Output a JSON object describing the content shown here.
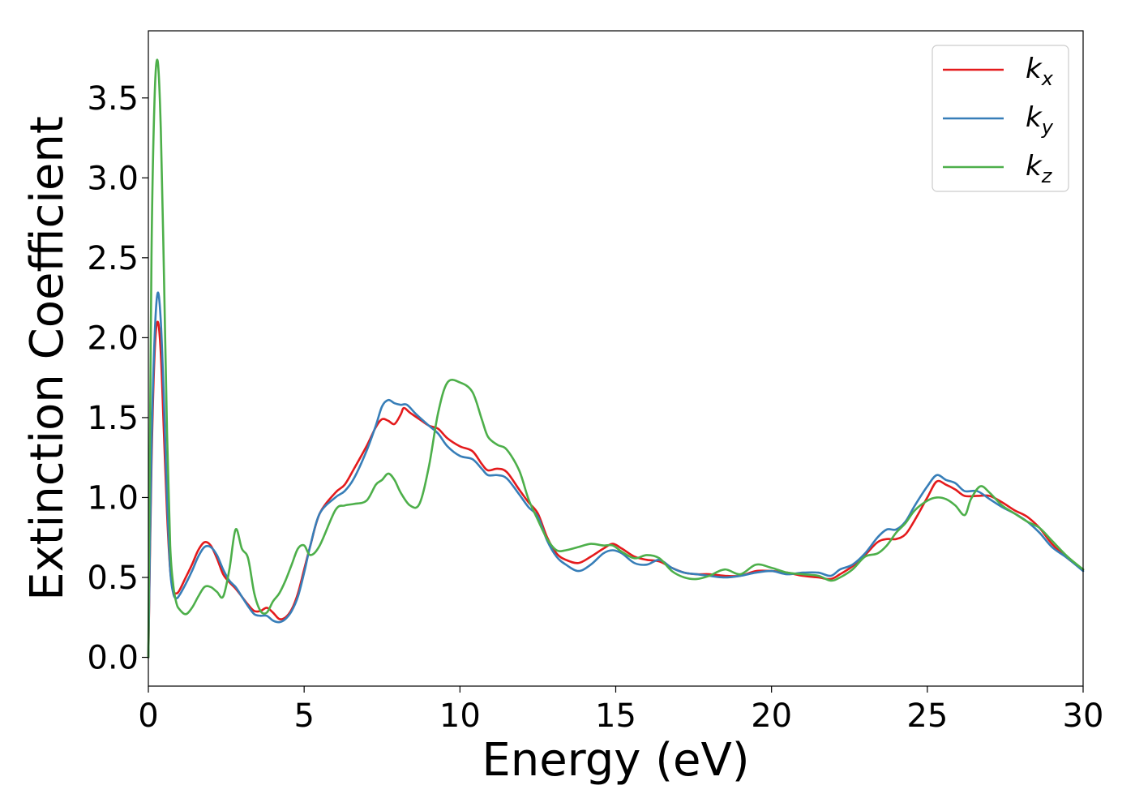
{
  "chart_data": {
    "type": "line",
    "title": "",
    "xlabel": "Energy (eV)",
    "ylabel": "Extinction Coefficient",
    "xlim": [
      0,
      30
    ],
    "ylim": [
      -0.18,
      3.92
    ],
    "xticks": [
      0,
      5,
      10,
      15,
      20,
      25,
      30
    ],
    "xtick_labels": [
      "0",
      "5",
      "10",
      "15",
      "20",
      "25",
      "30"
    ],
    "yticks": [
      0.0,
      0.5,
      1.0,
      1.5,
      2.0,
      2.5,
      3.0,
      3.5
    ],
    "ytick_labels": [
      "0.0",
      "0.5",
      "1.0",
      "1.5",
      "2.0",
      "2.5",
      "3.0",
      "3.5"
    ],
    "grid": false,
    "legend_position": "top-right",
    "series": [
      {
        "name": "k_x",
        "legend_base": "k",
        "legend_sub": "x",
        "color": "#e41a1c",
        "points": [
          [
            0,
            0.0
          ],
          [
            0.1,
            1.2
          ],
          [
            0.2,
            1.9
          ],
          [
            0.3,
            2.1
          ],
          [
            0.4,
            1.9
          ],
          [
            0.5,
            1.4
          ],
          [
            0.6,
            0.9
          ],
          [
            0.7,
            0.55
          ],
          [
            0.8,
            0.42
          ],
          [
            0.9,
            0.4
          ],
          [
            1.0,
            0.42
          ],
          [
            1.2,
            0.5
          ],
          [
            1.4,
            0.58
          ],
          [
            1.6,
            0.67
          ],
          [
            1.8,
            0.72
          ],
          [
            2.0,
            0.7
          ],
          [
            2.2,
            0.62
          ],
          [
            2.4,
            0.52
          ],
          [
            2.6,
            0.47
          ],
          [
            2.8,
            0.43
          ],
          [
            3.0,
            0.38
          ],
          [
            3.2,
            0.33
          ],
          [
            3.4,
            0.29
          ],
          [
            3.6,
            0.29
          ],
          [
            3.8,
            0.31
          ],
          [
            4.0,
            0.28
          ],
          [
            4.2,
            0.24
          ],
          [
            4.4,
            0.25
          ],
          [
            4.6,
            0.3
          ],
          [
            4.8,
            0.4
          ],
          [
            5.0,
            0.55
          ],
          [
            5.2,
            0.7
          ],
          [
            5.5,
            0.9
          ],
          [
            6.0,
            1.03
          ],
          [
            6.3,
            1.08
          ],
          [
            6.6,
            1.18
          ],
          [
            7.0,
            1.32
          ],
          [
            7.3,
            1.44
          ],
          [
            7.5,
            1.49
          ],
          [
            7.7,
            1.48
          ],
          [
            7.9,
            1.46
          ],
          [
            8.1,
            1.52
          ],
          [
            8.2,
            1.56
          ],
          [
            8.4,
            1.53
          ],
          [
            8.7,
            1.49
          ],
          [
            9.0,
            1.45
          ],
          [
            9.3,
            1.43
          ],
          [
            9.6,
            1.37
          ],
          [
            10.0,
            1.32
          ],
          [
            10.4,
            1.29
          ],
          [
            10.7,
            1.21
          ],
          [
            10.9,
            1.17
          ],
          [
            11.2,
            1.18
          ],
          [
            11.5,
            1.16
          ],
          [
            11.9,
            1.05
          ],
          [
            12.2,
            0.97
          ],
          [
            12.5,
            0.9
          ],
          [
            12.8,
            0.75
          ],
          [
            13.1,
            0.65
          ],
          [
            13.4,
            0.61
          ],
          [
            13.8,
            0.59
          ],
          [
            14.2,
            0.63
          ],
          [
            14.6,
            0.68
          ],
          [
            14.9,
            0.71
          ],
          [
            15.2,
            0.68
          ],
          [
            15.6,
            0.63
          ],
          [
            16.0,
            0.61
          ],
          [
            16.4,
            0.6
          ],
          [
            16.8,
            0.56
          ],
          [
            17.2,
            0.53
          ],
          [
            17.6,
            0.52
          ],
          [
            18.0,
            0.52
          ],
          [
            18.5,
            0.51
          ],
          [
            19.0,
            0.51
          ],
          [
            19.5,
            0.54
          ],
          [
            20.0,
            0.54
          ],
          [
            20.5,
            0.53
          ],
          [
            21.0,
            0.51
          ],
          [
            21.5,
            0.5
          ],
          [
            21.9,
            0.49
          ],
          [
            22.2,
            0.52
          ],
          [
            22.6,
            0.57
          ],
          [
            23.0,
            0.64
          ],
          [
            23.4,
            0.72
          ],
          [
            23.7,
            0.74
          ],
          [
            24.0,
            0.74
          ],
          [
            24.3,
            0.77
          ],
          [
            24.6,
            0.86
          ],
          [
            25.0,
            1.0
          ],
          [
            25.3,
            1.1
          ],
          [
            25.6,
            1.08
          ],
          [
            25.9,
            1.05
          ],
          [
            26.2,
            1.01
          ],
          [
            26.6,
            1.01
          ],
          [
            27.0,
            1.01
          ],
          [
            27.4,
            0.97
          ],
          [
            27.8,
            0.92
          ],
          [
            28.2,
            0.88
          ],
          [
            28.6,
            0.81
          ],
          [
            29.0,
            0.71
          ],
          [
            29.5,
            0.62
          ],
          [
            30.0,
            0.55
          ]
        ]
      },
      {
        "name": "k_y",
        "legend_base": "k",
        "legend_sub": "y",
        "color": "#377eb8",
        "points": [
          [
            0,
            0.0
          ],
          [
            0.1,
            1.3
          ],
          [
            0.2,
            2.0
          ],
          [
            0.3,
            2.28
          ],
          [
            0.4,
            2.1
          ],
          [
            0.5,
            1.6
          ],
          [
            0.6,
            1.0
          ],
          [
            0.7,
            0.55
          ],
          [
            0.8,
            0.4
          ],
          [
            0.9,
            0.37
          ],
          [
            1.0,
            0.39
          ],
          [
            1.2,
            0.46
          ],
          [
            1.4,
            0.54
          ],
          [
            1.6,
            0.63
          ],
          [
            1.8,
            0.69
          ],
          [
            2.0,
            0.69
          ],
          [
            2.2,
            0.64
          ],
          [
            2.4,
            0.55
          ],
          [
            2.6,
            0.48
          ],
          [
            2.8,
            0.44
          ],
          [
            3.0,
            0.38
          ],
          [
            3.2,
            0.32
          ],
          [
            3.4,
            0.27
          ],
          [
            3.6,
            0.26
          ],
          [
            3.8,
            0.26
          ],
          [
            4.0,
            0.23
          ],
          [
            4.2,
            0.22
          ],
          [
            4.4,
            0.24
          ],
          [
            4.6,
            0.29
          ],
          [
            4.8,
            0.38
          ],
          [
            5.0,
            0.53
          ],
          [
            5.2,
            0.7
          ],
          [
            5.5,
            0.9
          ],
          [
            6.0,
            1.0
          ],
          [
            6.3,
            1.04
          ],
          [
            6.6,
            1.12
          ],
          [
            7.0,
            1.29
          ],
          [
            7.3,
            1.45
          ],
          [
            7.5,
            1.57
          ],
          [
            7.7,
            1.61
          ],
          [
            7.9,
            1.59
          ],
          [
            8.1,
            1.58
          ],
          [
            8.3,
            1.58
          ],
          [
            8.6,
            1.52
          ],
          [
            9.0,
            1.45
          ],
          [
            9.3,
            1.4
          ],
          [
            9.6,
            1.32
          ],
          [
            10.0,
            1.26
          ],
          [
            10.4,
            1.24
          ],
          [
            10.7,
            1.18
          ],
          [
            10.9,
            1.14
          ],
          [
            11.2,
            1.14
          ],
          [
            11.5,
            1.12
          ],
          [
            11.9,
            1.02
          ],
          [
            12.2,
            0.94
          ],
          [
            12.5,
            0.88
          ],
          [
            12.8,
            0.73
          ],
          [
            13.1,
            0.63
          ],
          [
            13.4,
            0.58
          ],
          [
            13.8,
            0.54
          ],
          [
            14.2,
            0.58
          ],
          [
            14.6,
            0.65
          ],
          [
            14.9,
            0.67
          ],
          [
            15.2,
            0.65
          ],
          [
            15.6,
            0.59
          ],
          [
            16.0,
            0.58
          ],
          [
            16.4,
            0.61
          ],
          [
            16.8,
            0.56
          ],
          [
            17.2,
            0.53
          ],
          [
            17.6,
            0.52
          ],
          [
            18.0,
            0.51
          ],
          [
            18.5,
            0.5
          ],
          [
            19.0,
            0.51
          ],
          [
            19.5,
            0.53
          ],
          [
            20.0,
            0.54
          ],
          [
            20.5,
            0.52
          ],
          [
            21.0,
            0.53
          ],
          [
            21.5,
            0.53
          ],
          [
            21.9,
            0.51
          ],
          [
            22.2,
            0.55
          ],
          [
            22.6,
            0.58
          ],
          [
            23.0,
            0.65
          ],
          [
            23.4,
            0.75
          ],
          [
            23.7,
            0.8
          ],
          [
            24.0,
            0.8
          ],
          [
            24.3,
            0.85
          ],
          [
            24.6,
            0.95
          ],
          [
            25.0,
            1.07
          ],
          [
            25.3,
            1.14
          ],
          [
            25.6,
            1.11
          ],
          [
            25.9,
            1.09
          ],
          [
            26.2,
            1.04
          ],
          [
            26.6,
            1.04
          ],
          [
            27.0,
            0.99
          ],
          [
            27.4,
            0.94
          ],
          [
            27.8,
            0.9
          ],
          [
            28.2,
            0.85
          ],
          [
            28.6,
            0.78
          ],
          [
            29.0,
            0.69
          ],
          [
            29.5,
            0.62
          ],
          [
            30.0,
            0.54
          ]
        ]
      },
      {
        "name": "k_z",
        "legend_base": "k",
        "legend_sub": "z",
        "color": "#4daf4a",
        "points": [
          [
            0,
            0.0
          ],
          [
            0.1,
            2.5
          ],
          [
            0.2,
            3.5
          ],
          [
            0.3,
            3.73
          ],
          [
            0.4,
            3.3
          ],
          [
            0.5,
            2.4
          ],
          [
            0.6,
            1.4
          ],
          [
            0.7,
            0.7
          ],
          [
            0.8,
            0.45
          ],
          [
            0.9,
            0.34
          ],
          [
            1.0,
            0.3
          ],
          [
            1.2,
            0.27
          ],
          [
            1.4,
            0.31
          ],
          [
            1.6,
            0.38
          ],
          [
            1.8,
            0.44
          ],
          [
            2.0,
            0.44
          ],
          [
            2.2,
            0.41
          ],
          [
            2.4,
            0.38
          ],
          [
            2.6,
            0.55
          ],
          [
            2.8,
            0.8
          ],
          [
            3.0,
            0.68
          ],
          [
            3.2,
            0.62
          ],
          [
            3.4,
            0.4
          ],
          [
            3.6,
            0.29
          ],
          [
            3.8,
            0.28
          ],
          [
            4.0,
            0.35
          ],
          [
            4.2,
            0.4
          ],
          [
            4.4,
            0.48
          ],
          [
            4.6,
            0.58
          ],
          [
            4.8,
            0.68
          ],
          [
            5.0,
            0.7
          ],
          [
            5.2,
            0.64
          ],
          [
            5.5,
            0.7
          ],
          [
            6.0,
            0.92
          ],
          [
            6.3,
            0.95
          ],
          [
            6.6,
            0.96
          ],
          [
            7.0,
            0.98
          ],
          [
            7.3,
            1.08
          ],
          [
            7.5,
            1.11
          ],
          [
            7.7,
            1.15
          ],
          [
            7.9,
            1.11
          ],
          [
            8.1,
            1.03
          ],
          [
            8.4,
            0.95
          ],
          [
            8.7,
            0.96
          ],
          [
            9.0,
            1.19
          ],
          [
            9.3,
            1.53
          ],
          [
            9.6,
            1.72
          ],
          [
            10.0,
            1.72
          ],
          [
            10.4,
            1.66
          ],
          [
            10.7,
            1.49
          ],
          [
            10.9,
            1.38
          ],
          [
            11.2,
            1.33
          ],
          [
            11.5,
            1.3
          ],
          [
            11.9,
            1.17
          ],
          [
            12.2,
            0.99
          ],
          [
            12.5,
            0.86
          ],
          [
            12.8,
            0.74
          ],
          [
            13.1,
            0.67
          ],
          [
            13.4,
            0.67
          ],
          [
            13.8,
            0.69
          ],
          [
            14.2,
            0.71
          ],
          [
            14.6,
            0.7
          ],
          [
            14.9,
            0.7
          ],
          [
            15.2,
            0.66
          ],
          [
            15.6,
            0.62
          ],
          [
            16.0,
            0.64
          ],
          [
            16.4,
            0.62
          ],
          [
            16.8,
            0.54
          ],
          [
            17.2,
            0.5
          ],
          [
            17.6,
            0.49
          ],
          [
            18.0,
            0.51
          ],
          [
            18.5,
            0.55
          ],
          [
            19.0,
            0.52
          ],
          [
            19.5,
            0.58
          ],
          [
            20.0,
            0.56
          ],
          [
            20.5,
            0.53
          ],
          [
            21.0,
            0.52
          ],
          [
            21.5,
            0.51
          ],
          [
            21.9,
            0.48
          ],
          [
            22.2,
            0.5
          ],
          [
            22.6,
            0.55
          ],
          [
            23.0,
            0.63
          ],
          [
            23.4,
            0.65
          ],
          [
            23.7,
            0.7
          ],
          [
            24.0,
            0.78
          ],
          [
            24.3,
            0.84
          ],
          [
            24.6,
            0.92
          ],
          [
            25.0,
            0.98
          ],
          [
            25.3,
            1.0
          ],
          [
            25.6,
            0.99
          ],
          [
            25.9,
            0.95
          ],
          [
            26.2,
            0.89
          ],
          [
            26.4,
            0.99
          ],
          [
            26.7,
            1.07
          ],
          [
            27.0,
            1.03
          ],
          [
            27.4,
            0.95
          ],
          [
            27.8,
            0.9
          ],
          [
            28.2,
            0.85
          ],
          [
            28.6,
            0.81
          ],
          [
            29.0,
            0.73
          ],
          [
            29.5,
            0.63
          ],
          [
            30.0,
            0.55
          ]
        ]
      }
    ]
  }
}
